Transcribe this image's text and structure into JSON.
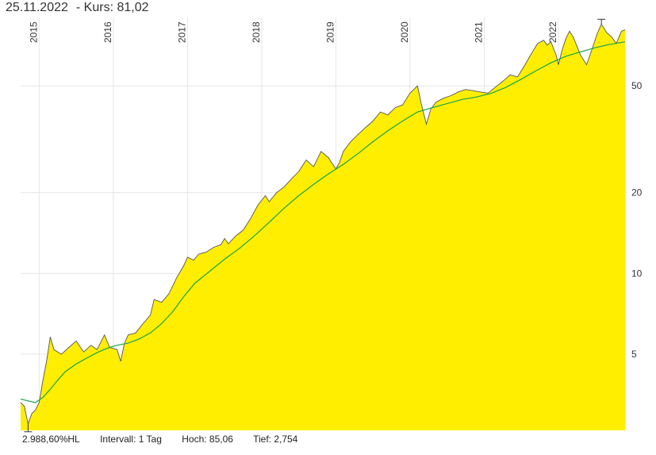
{
  "header": {
    "date": "25.11.2022",
    "price_label": "- Kurs: 81,02"
  },
  "footer": {
    "change": "2.988,60%HL",
    "interval": "Intervall: 1 Tag",
    "high": "Hoch:  85,06",
    "low": "Tief:  2,754"
  },
  "colors": {
    "area": "#ffee00",
    "price_line": "#555555",
    "moving_average": "#1aa34a",
    "grid": "#e6e6e6"
  },
  "chart_data": {
    "type": "area",
    "y_scale": "log",
    "ylim": [
      2.6,
      90
    ],
    "xlim": [
      2014.75,
      2022.92
    ],
    "y_ticks": [
      {
        "value": 5,
        "label": "5"
      },
      {
        "value": 10,
        "label": "10"
      },
      {
        "value": 20,
        "label": "20"
      },
      {
        "value": 50,
        "label": "50"
      }
    ],
    "x_ticks": [
      {
        "value": 2015,
        "label": "2015"
      },
      {
        "value": 2016,
        "label": "2016"
      },
      {
        "value": 2017,
        "label": "2017"
      },
      {
        "value": 2018,
        "label": "2018"
      },
      {
        "value": 2019,
        "label": "2019"
      },
      {
        "value": 2020,
        "label": "2020"
      },
      {
        "value": 2021,
        "label": "2021"
      },
      {
        "value": 2022,
        "label": "2022"
      }
    ],
    "price": [
      [
        2014.75,
        3.3
      ],
      [
        2014.8,
        3.2
      ],
      [
        2014.85,
        2.75
      ],
      [
        2014.9,
        3.0
      ],
      [
        2014.95,
        3.1
      ],
      [
        2015.0,
        3.3
      ],
      [
        2015.05,
        4.0
      ],
      [
        2015.1,
        4.7
      ],
      [
        2015.15,
        5.8
      ],
      [
        2015.2,
        5.2
      ],
      [
        2015.3,
        5.0
      ],
      [
        2015.4,
        5.3
      ],
      [
        2015.5,
        5.6
      ],
      [
        2015.6,
        5.1
      ],
      [
        2015.7,
        5.4
      ],
      [
        2015.78,
        5.2
      ],
      [
        2015.88,
        5.9
      ],
      [
        2015.95,
        5.3
      ],
      [
        2016.05,
        5.2
      ],
      [
        2016.1,
        4.7
      ],
      [
        2016.15,
        5.5
      ],
      [
        2016.2,
        5.9
      ],
      [
        2016.3,
        6.0
      ],
      [
        2016.4,
        6.5
      ],
      [
        2016.5,
        7.0
      ],
      [
        2016.55,
        8.0
      ],
      [
        2016.65,
        7.8
      ],
      [
        2016.75,
        8.4
      ],
      [
        2016.85,
        9.6
      ],
      [
        2016.95,
        10.7
      ],
      [
        2017.0,
        11.5
      ],
      [
        2017.08,
        11.2
      ],
      [
        2017.15,
        11.8
      ],
      [
        2017.25,
        12.0
      ],
      [
        2017.35,
        12.5
      ],
      [
        2017.45,
        12.8
      ],
      [
        2017.5,
        13.5
      ],
      [
        2017.55,
        12.9
      ],
      [
        2017.65,
        13.8
      ],
      [
        2017.75,
        14.5
      ],
      [
        2017.85,
        16.0
      ],
      [
        2017.95,
        18.0
      ],
      [
        2018.05,
        19.5
      ],
      [
        2018.1,
        18.5
      ],
      [
        2018.2,
        20.0
      ],
      [
        2018.3,
        21.0
      ],
      [
        2018.4,
        22.5
      ],
      [
        2018.5,
        24.0
      ],
      [
        2018.6,
        26.5
      ],
      [
        2018.7,
        25.0
      ],
      [
        2018.8,
        28.5
      ],
      [
        2018.9,
        27.0
      ],
      [
        2019.0,
        24.5
      ],
      [
        2019.05,
        26.0
      ],
      [
        2019.1,
        28.5
      ],
      [
        2019.2,
        31.0
      ],
      [
        2019.3,
        33.0
      ],
      [
        2019.4,
        35.0
      ],
      [
        2019.5,
        37.0
      ],
      [
        2019.6,
        40.0
      ],
      [
        2019.7,
        39.0
      ],
      [
        2019.8,
        41.5
      ],
      [
        2019.9,
        42.5
      ],
      [
        2020.0,
        47.0
      ],
      [
        2020.1,
        50.0
      ],
      [
        2020.15,
        43.0
      ],
      [
        2020.22,
        36.0
      ],
      [
        2020.28,
        41.0
      ],
      [
        2020.35,
        43.5
      ],
      [
        2020.45,
        45.0
      ],
      [
        2020.55,
        46.0
      ],
      [
        2020.65,
        47.5
      ],
      [
        2020.75,
        48.5
      ],
      [
        2020.85,
        48.0
      ],
      [
        2020.95,
        47.5
      ],
      [
        2021.05,
        47.0
      ],
      [
        2021.15,
        49.5
      ],
      [
        2021.25,
        52.0
      ],
      [
        2021.35,
        55.0
      ],
      [
        2021.45,
        54.0
      ],
      [
        2021.55,
        60.0
      ],
      [
        2021.65,
        67.0
      ],
      [
        2021.72,
        72.0
      ],
      [
        2021.8,
        74.0
      ],
      [
        2021.85,
        71.0
      ],
      [
        2021.9,
        73.0
      ],
      [
        2021.97,
        65.0
      ],
      [
        2022.0,
        60.0
      ],
      [
        2022.05,
        68.0
      ],
      [
        2022.1,
        75.0
      ],
      [
        2022.15,
        80.0
      ],
      [
        2022.2,
        76.0
      ],
      [
        2022.3,
        65.0
      ],
      [
        2022.38,
        60.0
      ],
      [
        2022.45,
        68.0
      ],
      [
        2022.52,
        78.0
      ],
      [
        2022.58,
        85.06
      ],
      [
        2022.65,
        79.0
      ],
      [
        2022.72,
        76.0
      ],
      [
        2022.78,
        72.0
      ],
      [
        2022.85,
        80.0
      ],
      [
        2022.9,
        81.02
      ]
    ],
    "moving_average": [
      [
        2014.75,
        3.4
      ],
      [
        2014.85,
        3.35
      ],
      [
        2014.95,
        3.3
      ],
      [
        2015.05,
        3.45
      ],
      [
        2015.15,
        3.7
      ],
      [
        2015.25,
        4.0
      ],
      [
        2015.35,
        4.3
      ],
      [
        2015.5,
        4.6
      ],
      [
        2015.65,
        4.85
      ],
      [
        2015.8,
        5.1
      ],
      [
        2015.95,
        5.3
      ],
      [
        2016.05,
        5.4
      ],
      [
        2016.2,
        5.5
      ],
      [
        2016.35,
        5.7
      ],
      [
        2016.5,
        6.0
      ],
      [
        2016.65,
        6.5
      ],
      [
        2016.8,
        7.2
      ],
      [
        2016.95,
        8.2
      ],
      [
        2017.1,
        9.2
      ],
      [
        2017.3,
        10.2
      ],
      [
        2017.5,
        11.3
      ],
      [
        2017.7,
        12.4
      ],
      [
        2017.9,
        13.8
      ],
      [
        2018.1,
        15.5
      ],
      [
        2018.3,
        17.5
      ],
      [
        2018.5,
        19.5
      ],
      [
        2018.7,
        21.5
      ],
      [
        2018.9,
        23.5
      ],
      [
        2019.1,
        25.5
      ],
      [
        2019.3,
        28.0
      ],
      [
        2019.5,
        31.0
      ],
      [
        2019.7,
        34.0
      ],
      [
        2019.9,
        37.0
      ],
      [
        2020.1,
        40.0
      ],
      [
        2020.3,
        41.5
      ],
      [
        2020.5,
        43.0
      ],
      [
        2020.7,
        44.5
      ],
      [
        2020.9,
        45.5
      ],
      [
        2021.1,
        47.0
      ],
      [
        2021.3,
        49.5
      ],
      [
        2021.5,
        53.0
      ],
      [
        2021.7,
        57.0
      ],
      [
        2021.9,
        61.0
      ],
      [
        2022.1,
        64.5
      ],
      [
        2022.3,
        67.0
      ],
      [
        2022.5,
        69.5
      ],
      [
        2022.7,
        71.5
      ],
      [
        2022.9,
        73.0
      ]
    ]
  }
}
